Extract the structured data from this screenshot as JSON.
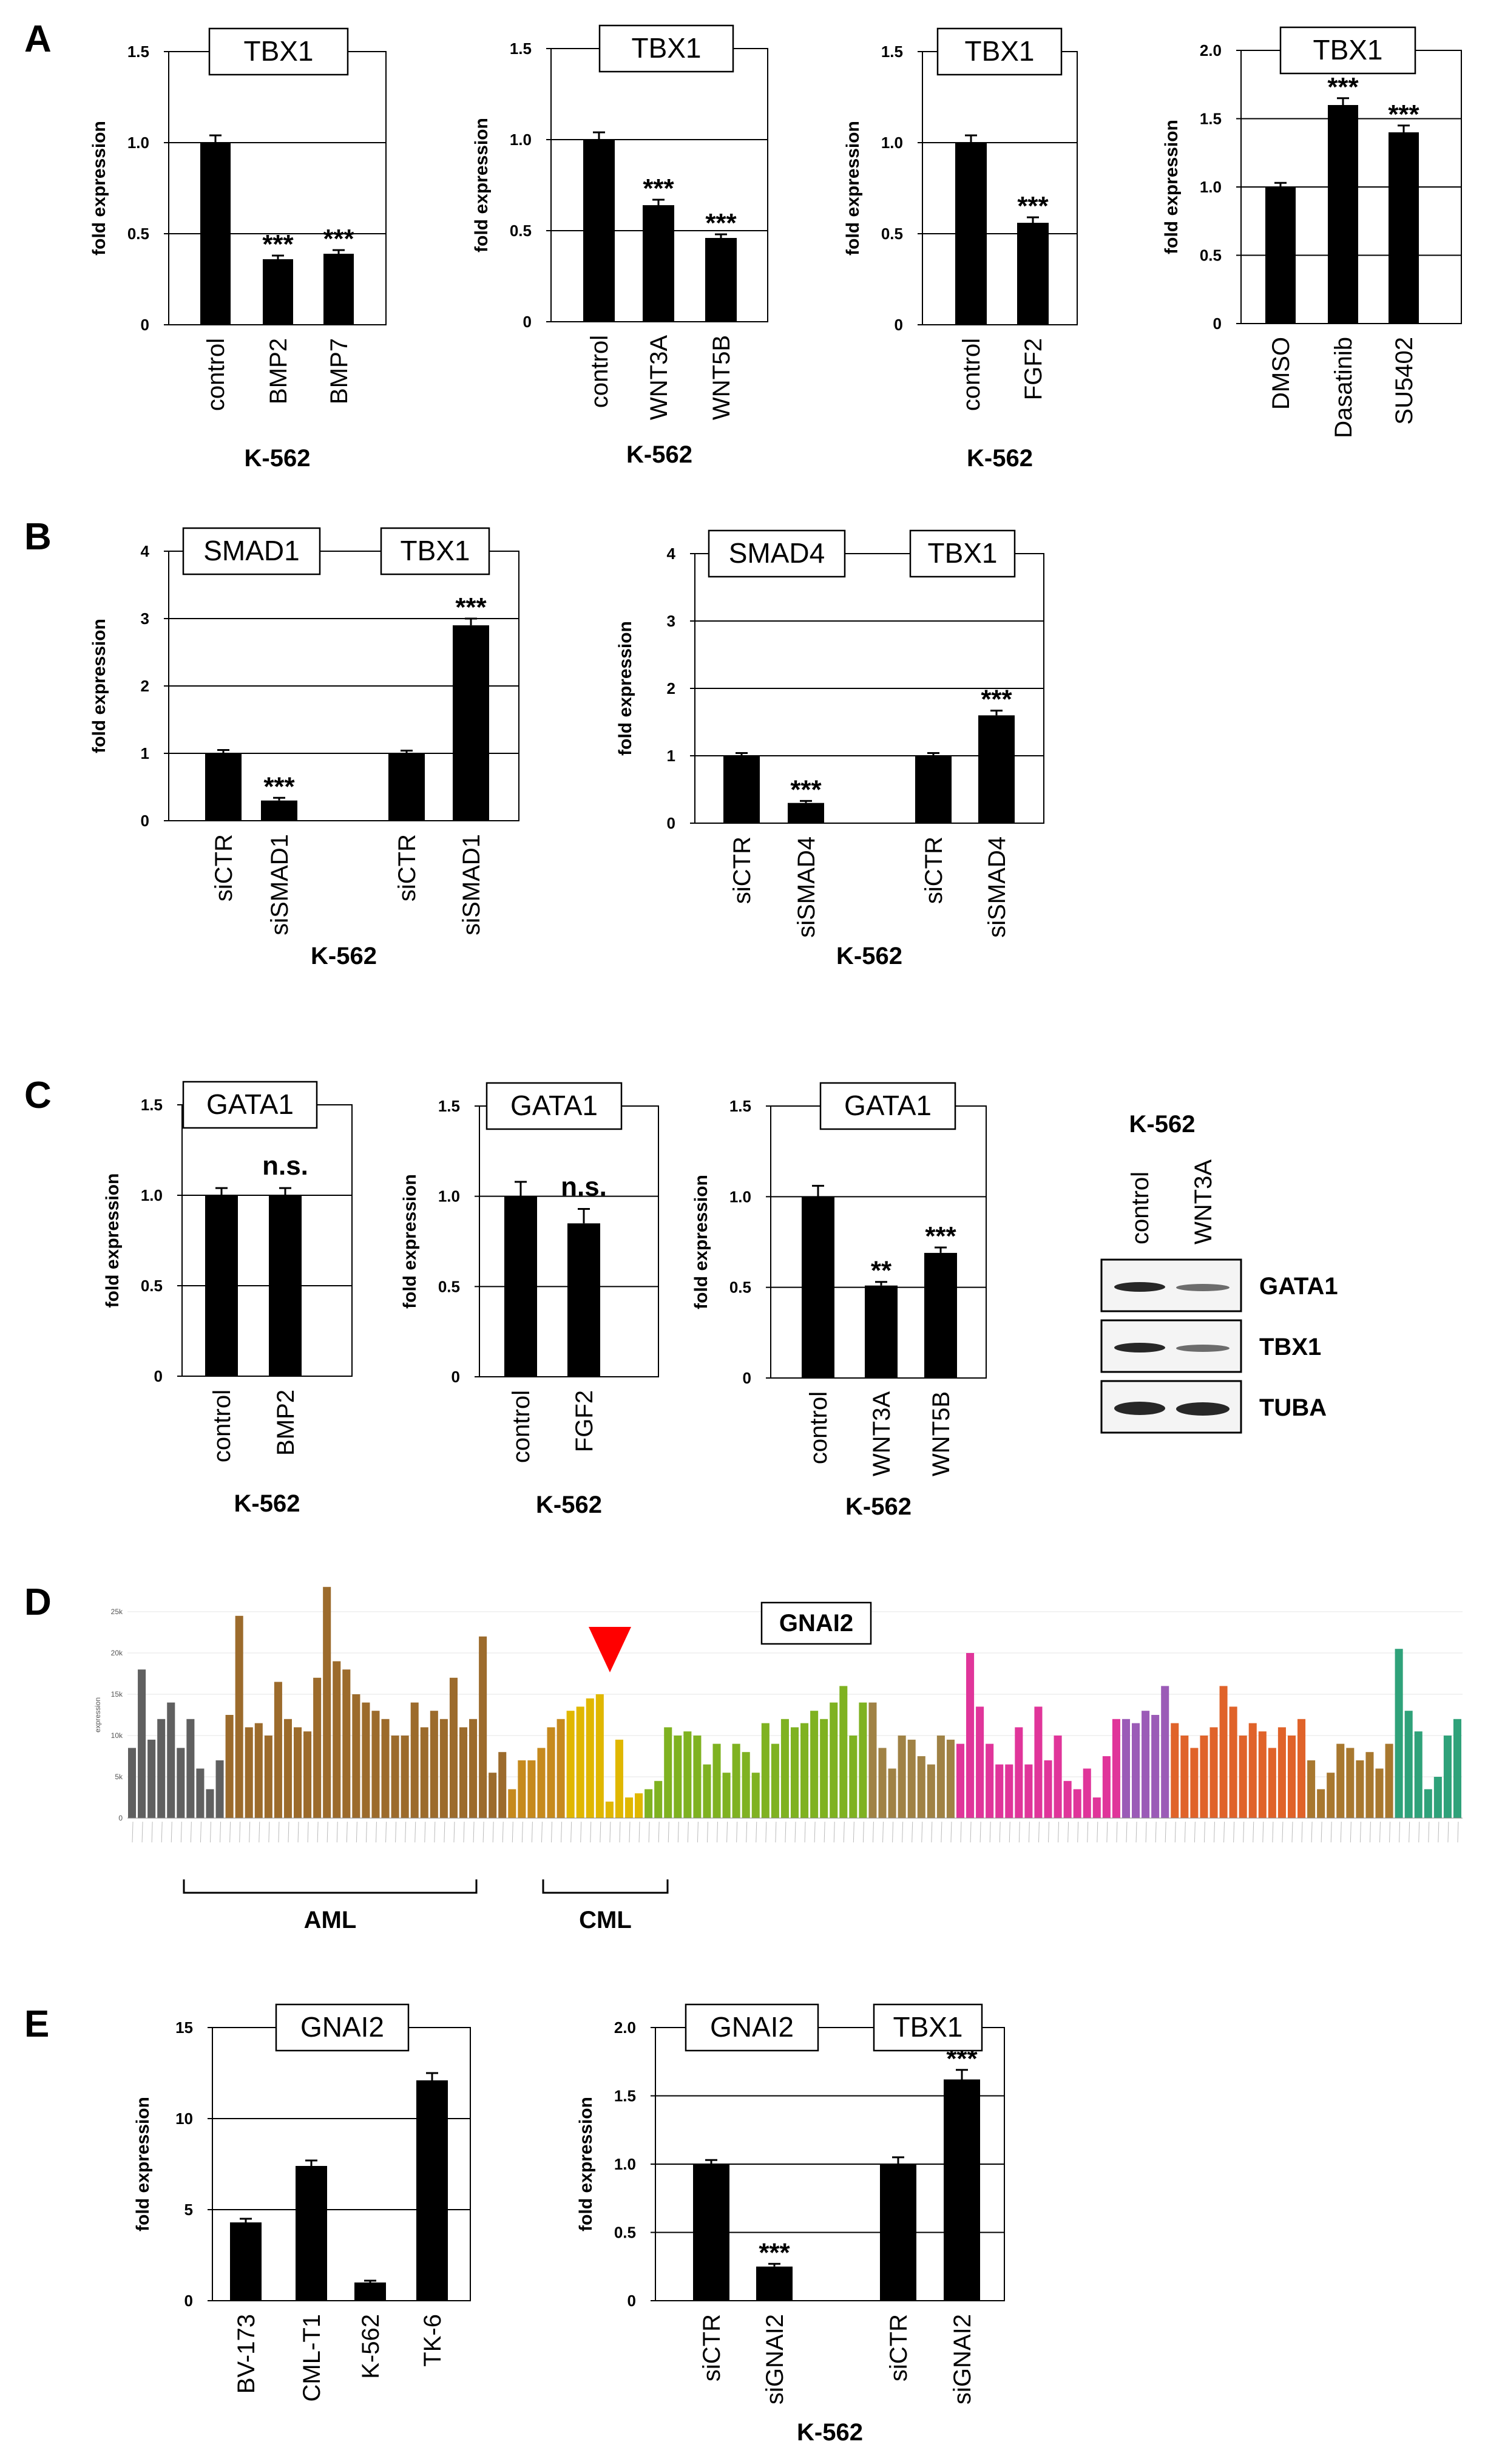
{
  "panel_letters": [
    "A",
    "B",
    "C",
    "D",
    "E"
  ],
  "colors": {
    "bar": "#000000",
    "axis": "#000000",
    "arrow": "#ff0000"
  },
  "chart_data": [
    {
      "panel": "A",
      "type": "bar",
      "ylabel": "fold expression",
      "ylim": [
        0,
        1.5
      ],
      "yticks": [
        "0",
        "0.5",
        "1.0",
        "1.5"
      ],
      "categories": [
        "control",
        "BMP2",
        "BMP7"
      ],
      "values": [
        1.0,
        0.36,
        0.39
      ],
      "errors": [
        0.04,
        0.02,
        0.02
      ],
      "significance": [
        "",
        "***",
        "***"
      ],
      "labels": [
        "TBX1"
      ],
      "below": "K-562"
    },
    {
      "panel": "A",
      "type": "bar",
      "ylabel": "fold expression",
      "ylim": [
        0,
        1.5
      ],
      "yticks": [
        "0",
        "0.5",
        "1.0",
        "1.5"
      ],
      "categories": [
        "control",
        "WNT3A",
        "WNT5B"
      ],
      "values": [
        1.0,
        0.64,
        0.46
      ],
      "errors": [
        0.04,
        0.03,
        0.02
      ],
      "significance": [
        "",
        "***",
        "***"
      ],
      "labels": [
        "TBX1"
      ],
      "below": "K-562"
    },
    {
      "panel": "A",
      "type": "bar",
      "ylabel": "fold expression",
      "ylim": [
        0,
        1.5
      ],
      "yticks": [
        "0",
        "0.5",
        "1.0",
        "1.5"
      ],
      "categories": [
        "control",
        "FGF2"
      ],
      "values": [
        1.0,
        0.56
      ],
      "errors": [
        0.04,
        0.03
      ],
      "significance": [
        "",
        "***"
      ],
      "labels": [
        "TBX1"
      ],
      "below": "K-562"
    },
    {
      "panel": "A",
      "type": "bar",
      "ylabel": "fold expression",
      "ylim": [
        0,
        2.0
      ],
      "yticks": [
        "0",
        "0.5",
        "1.0",
        "1.5",
        "2.0"
      ],
      "categories": [
        "DMSO",
        "Dasatinib",
        "SU5402"
      ],
      "values": [
        1.0,
        1.6,
        1.4
      ],
      "errors": [
        0.03,
        0.05,
        0.05
      ],
      "significance": [
        "",
        "***",
        "***"
      ],
      "labels": [
        "TBX1"
      ],
      "below": ""
    },
    {
      "panel": "B",
      "type": "bar",
      "ylabel": "fold expression",
      "ylim": [
        0,
        4
      ],
      "yticks": [
        "0",
        "1",
        "2",
        "3",
        "4"
      ],
      "categories": [
        "siCTR",
        "siSMAD1",
        "",
        "siCTR",
        "siSMAD1"
      ],
      "values": [
        1.0,
        0.3,
        null,
        1.0,
        2.9
      ],
      "errors": [
        0.05,
        0.04,
        null,
        0.04,
        0.1
      ],
      "significance": [
        "",
        "***",
        "",
        "",
        "***"
      ],
      "labels": [
        "SMAD1",
        "TBX1"
      ],
      "below": "K-562"
    },
    {
      "panel": "B",
      "type": "bar",
      "ylabel": "fold expression",
      "ylim": [
        0,
        4
      ],
      "yticks": [
        "0",
        "1",
        "2",
        "3",
        "4"
      ],
      "categories": [
        "siCTR",
        "siSMAD4",
        "",
        "siCTR",
        "siSMAD4"
      ],
      "values": [
        1.0,
        0.3,
        null,
        1.0,
        1.6
      ],
      "errors": [
        0.04,
        0.03,
        null,
        0.04,
        0.07
      ],
      "significance": [
        "",
        "***",
        "",
        "",
        "***"
      ],
      "labels": [
        "SMAD4",
        "TBX1"
      ],
      "below": "K-562"
    },
    {
      "panel": "C",
      "type": "bar",
      "ylabel": "fold expression",
      "ylim": [
        0,
        1.5
      ],
      "yticks": [
        "0",
        "0.5",
        "1.0",
        "1.5"
      ],
      "categories": [
        "control",
        "BMP2"
      ],
      "values": [
        1.0,
        1.0
      ],
      "errors": [
        0.04,
        0.04
      ],
      "significance": [
        "",
        "n.s."
      ],
      "labels": [
        "GATA1"
      ],
      "below": "K-562"
    },
    {
      "panel": "C",
      "type": "bar",
      "ylabel": "fold expression",
      "ylim": [
        0,
        1.5
      ],
      "yticks": [
        "0",
        "0.5",
        "1.0",
        "1.5"
      ],
      "categories": [
        "control",
        "FGF2"
      ],
      "values": [
        1.0,
        0.85
      ],
      "errors": [
        0.08,
        0.08
      ],
      "significance": [
        "",
        "n.s."
      ],
      "labels": [
        "GATA1"
      ],
      "below": "K-562"
    },
    {
      "panel": "C",
      "type": "bar",
      "ylabel": "fold expression",
      "ylim": [
        0,
        1.5
      ],
      "yticks": [
        "0",
        "0.5",
        "1.0",
        "1.5"
      ],
      "categories": [
        "control",
        "WNT3A",
        "WNT5B"
      ],
      "values": [
        1.0,
        0.51,
        0.69
      ],
      "errors": [
        0.06,
        0.02,
        0.03
      ],
      "significance": [
        "",
        "**",
        "***"
      ],
      "labels": [
        "GATA1"
      ],
      "below": "K-562"
    },
    {
      "panel": "E",
      "type": "bar",
      "ylabel": "fold expression",
      "ylim": [
        0,
        15
      ],
      "yticks": [
        "0",
        "5",
        "10",
        "15"
      ],
      "categories": [
        "BV-173",
        "CML-T1",
        "K-562",
        "TK-6"
      ],
      "values": [
        4.3,
        7.4,
        1.0,
        12.1
      ],
      "errors": [
        0.2,
        0.3,
        0.1,
        0.4
      ],
      "significance": [
        "",
        "",
        "",
        ""
      ],
      "labels": [
        "GNAI2"
      ],
      "below": ""
    },
    {
      "panel": "E",
      "type": "bar",
      "ylabel": "fold expression",
      "ylim": [
        0,
        2.0
      ],
      "yticks": [
        "0",
        "0.5",
        "1.0",
        "1.5",
        "2.0"
      ],
      "categories": [
        "siCTR",
        "siGNAI2",
        "",
        "siCTR",
        "siGNAI2"
      ],
      "values": [
        1.0,
        0.25,
        null,
        1.0,
        1.62
      ],
      "errors": [
        0.03,
        0.02,
        null,
        0.05,
        0.07
      ],
      "significance": [
        "",
        "***",
        "",
        "",
        "***"
      ],
      "labels": [
        "GNAI2",
        "TBX1"
      ],
      "below": "K-562"
    },
    {
      "panel": "D",
      "type": "bar",
      "title": "GNAI2",
      "ylabel": "expression",
      "ylim": [
        0,
        25000
      ],
      "yticks": [
        "0",
        "5k",
        "10k",
        "15k",
        "20k",
        "25k"
      ],
      "colors": [
        "#606060",
        "#9c6b2c",
        "#c68a1e",
        "#e0b700",
        "#7fb221",
        "#a08245",
        "#e0359a",
        "#9b5bb7",
        "#e0632a",
        "#a8782f",
        "#2fa27a"
      ],
      "group_labels": [
        "AML",
        "CML"
      ],
      "values": [
        {
          "v": 8500,
          "g": 0
        },
        {
          "v": 18000,
          "g": 0
        },
        {
          "v": 9500,
          "g": 0
        },
        {
          "v": 12000,
          "g": 0
        },
        {
          "v": 14000,
          "g": 0
        },
        {
          "v": 8500,
          "g": 0
        },
        {
          "v": 12000,
          "g": 0
        },
        {
          "v": 6000,
          "g": 0
        },
        {
          "v": 3500,
          "g": 0
        },
        {
          "v": 7000,
          "g": 0
        },
        {
          "v": 12500,
          "g": 1
        },
        {
          "v": 24500,
          "g": 1
        },
        {
          "v": 11000,
          "g": 1
        },
        {
          "v": 11500,
          "g": 1
        },
        {
          "v": 10000,
          "g": 1
        },
        {
          "v": 16500,
          "g": 1
        },
        {
          "v": 12000,
          "g": 1
        },
        {
          "v": 11000,
          "g": 1
        },
        {
          "v": 10500,
          "g": 1
        },
        {
          "v": 17000,
          "g": 1
        },
        {
          "v": 28000,
          "g": 1
        },
        {
          "v": 19000,
          "g": 1
        },
        {
          "v": 18000,
          "g": 1
        },
        {
          "v": 15000,
          "g": 1
        },
        {
          "v": 14000,
          "g": 1
        },
        {
          "v": 13000,
          "g": 1
        },
        {
          "v": 12000,
          "g": 1
        },
        {
          "v": 10000,
          "g": 1
        },
        {
          "v": 10000,
          "g": 1
        },
        {
          "v": 14000,
          "g": 1
        },
        {
          "v": 11000,
          "g": 1
        },
        {
          "v": 13000,
          "g": 1
        },
        {
          "v": 12000,
          "g": 1
        },
        {
          "v": 17000,
          "g": 1
        },
        {
          "v": 11000,
          "g": 1
        },
        {
          "v": 12000,
          "g": 1
        },
        {
          "v": 22000,
          "g": 1
        },
        {
          "v": 5500,
          "g": 1
        },
        {
          "v": 8000,
          "g": 1
        },
        {
          "v": 3500,
          "g": 2
        },
        {
          "v": 7000,
          "g": 2
        },
        {
          "v": 7000,
          "g": 2
        },
        {
          "v": 8500,
          "g": 2
        },
        {
          "v": 11000,
          "g": 2
        },
        {
          "v": 12000,
          "g": 2
        },
        {
          "v": 13000,
          "g": 3
        },
        {
          "v": 13500,
          "g": 3
        },
        {
          "v": 14500,
          "g": 3
        },
        {
          "v": 15000,
          "g": 3
        },
        {
          "v": 2000,
          "g": 3
        },
        {
          "v": 9500,
          "g": 3
        },
        {
          "v": 2500,
          "g": 3
        },
        {
          "v": 3000,
          "g": 3
        },
        {
          "v": 3500,
          "g": 4
        },
        {
          "v": 4500,
          "g": 4
        },
        {
          "v": 11000,
          "g": 4
        },
        {
          "v": 10000,
          "g": 4
        },
        {
          "v": 10500,
          "g": 4
        },
        {
          "v": 10000,
          "g": 4
        },
        {
          "v": 6500,
          "g": 4
        },
        {
          "v": 9000,
          "g": 4
        },
        {
          "v": 5500,
          "g": 4
        },
        {
          "v": 9000,
          "g": 4
        },
        {
          "v": 8000,
          "g": 4
        },
        {
          "v": 5500,
          "g": 4
        },
        {
          "v": 11500,
          "g": 4
        },
        {
          "v": 9000,
          "g": 4
        },
        {
          "v": 12000,
          "g": 4
        },
        {
          "v": 11000,
          "g": 4
        },
        {
          "v": 11500,
          "g": 4
        },
        {
          "v": 13000,
          "g": 4
        },
        {
          "v": 12000,
          "g": 4
        },
        {
          "v": 14000,
          "g": 4
        },
        {
          "v": 16000,
          "g": 4
        },
        {
          "v": 10000,
          "g": 4
        },
        {
          "v": 14000,
          "g": 4
        },
        {
          "v": 14000,
          "g": 5
        },
        {
          "v": 8500,
          "g": 5
        },
        {
          "v": 6000,
          "g": 5
        },
        {
          "v": 10000,
          "g": 5
        },
        {
          "v": 9500,
          "g": 5
        },
        {
          "v": 7500,
          "g": 5
        },
        {
          "v": 6500,
          "g": 5
        },
        {
          "v": 10000,
          "g": 5
        },
        {
          "v": 9500,
          "g": 5
        },
        {
          "v": 9000,
          "g": 6
        },
        {
          "v": 20000,
          "g": 6
        },
        {
          "v": 13500,
          "g": 6
        },
        {
          "v": 9000,
          "g": 6
        },
        {
          "v": 6500,
          "g": 6
        },
        {
          "v": 6500,
          "g": 6
        },
        {
          "v": 11000,
          "g": 6
        },
        {
          "v": 6500,
          "g": 6
        },
        {
          "v": 13500,
          "g": 6
        },
        {
          "v": 7000,
          "g": 6
        },
        {
          "v": 10000,
          "g": 6
        },
        {
          "v": 4500,
          "g": 6
        },
        {
          "v": 3500,
          "g": 6
        },
        {
          "v": 6000,
          "g": 6
        },
        {
          "v": 2500,
          "g": 6
        },
        {
          "v": 7500,
          "g": 6
        },
        {
          "v": 12000,
          "g": 6
        },
        {
          "v": 12000,
          "g": 7
        },
        {
          "v": 11500,
          "g": 7
        },
        {
          "v": 13000,
          "g": 7
        },
        {
          "v": 12500,
          "g": 7
        },
        {
          "v": 16000,
          "g": 7
        },
        {
          "v": 11500,
          "g": 8
        },
        {
          "v": 10000,
          "g": 8
        },
        {
          "v": 8500,
          "g": 8
        },
        {
          "v": 10000,
          "g": 8
        },
        {
          "v": 11000,
          "g": 8
        },
        {
          "v": 16000,
          "g": 8
        },
        {
          "v": 13500,
          "g": 8
        },
        {
          "v": 10000,
          "g": 8
        },
        {
          "v": 11500,
          "g": 8
        },
        {
          "v": 10500,
          "g": 8
        },
        {
          "v": 8500,
          "g": 8
        },
        {
          "v": 11000,
          "g": 8
        },
        {
          "v": 10000,
          "g": 8
        },
        {
          "v": 12000,
          "g": 8
        },
        {
          "v": 7000,
          "g": 9
        },
        {
          "v": 3500,
          "g": 9
        },
        {
          "v": 5500,
          "g": 9
        },
        {
          "v": 9000,
          "g": 9
        },
        {
          "v": 8500,
          "g": 9
        },
        {
          "v": 7000,
          "g": 9
        },
        {
          "v": 8000,
          "g": 9
        },
        {
          "v": 6000,
          "g": 9
        },
        {
          "v": 9000,
          "g": 9
        },
        {
          "v": 20500,
          "g": 10
        },
        {
          "v": 13000,
          "g": 10
        },
        {
          "v": 10500,
          "g": 10
        },
        {
          "v": 3500,
          "g": 10
        },
        {
          "v": 5000,
          "g": 10
        },
        {
          "v": 10000,
          "g": 10
        },
        {
          "v": 12000,
          "g": 10
        }
      ]
    }
  ],
  "western": {
    "title": "K-562",
    "lanes": [
      "control",
      "WNT3A"
    ],
    "rows": [
      "GATA1",
      "TBX1",
      "TUBA"
    ]
  }
}
